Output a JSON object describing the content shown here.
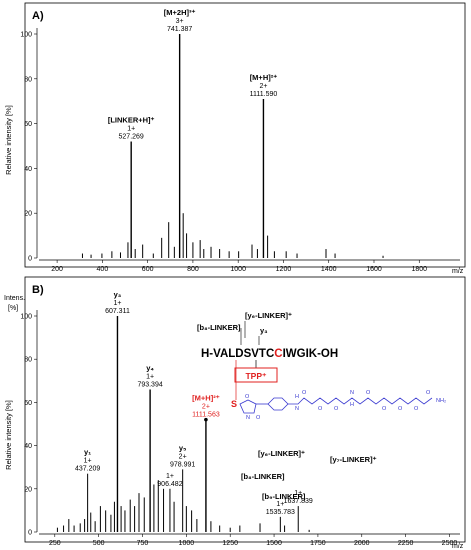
{
  "chart_data": [
    {
      "type": "bar",
      "panel_label": "A)",
      "ylabel": "Relative intensity [%]",
      "xunit": "m/z",
      "xlim": [
        120,
        1980
      ],
      "ylim": [
        0,
        100
      ],
      "x_ticks": [
        200,
        400,
        600,
        800,
        1000,
        1200,
        1400,
        1600,
        1800
      ],
      "y_ticks": [
        0,
        20,
        40,
        60,
        80,
        100
      ],
      "peaks": [
        {
          "mz": 312,
          "rel": 2
        },
        {
          "mz": 350,
          "rel": 1.5
        },
        {
          "mz": 398,
          "rel": 2
        },
        {
          "mz": 442,
          "rel": 3
        },
        {
          "mz": 480,
          "rel": 2.5
        },
        {
          "mz": 513,
          "rel": 7
        },
        {
          "mz": 527.269,
          "rel": 52
        },
        {
          "mz": 545,
          "rel": 4
        },
        {
          "mz": 578,
          "rel": 6
        },
        {
          "mz": 625,
          "rel": 2
        },
        {
          "mz": 662,
          "rel": 9
        },
        {
          "mz": 693,
          "rel": 16
        },
        {
          "mz": 718,
          "rel": 5
        },
        {
          "mz": 741.387,
          "rel": 100
        },
        {
          "mz": 757,
          "rel": 20
        },
        {
          "mz": 772,
          "rel": 11
        },
        {
          "mz": 800,
          "rel": 7
        },
        {
          "mz": 832,
          "rel": 8
        },
        {
          "mz": 848,
          "rel": 4
        },
        {
          "mz": 880,
          "rel": 5
        },
        {
          "mz": 918,
          "rel": 4
        },
        {
          "mz": 960,
          "rel": 3
        },
        {
          "mz": 1002,
          "rel": 3
        },
        {
          "mz": 1061,
          "rel": 6
        },
        {
          "mz": 1085,
          "rel": 4
        },
        {
          "mz": 1111.59,
          "rel": 71
        },
        {
          "mz": 1130,
          "rel": 10
        },
        {
          "mz": 1160,
          "rel": 3
        },
        {
          "mz": 1212,
          "rel": 3
        },
        {
          "mz": 1260,
          "rel": 2
        },
        {
          "mz": 1388,
          "rel": 4
        },
        {
          "mz": 1428,
          "rel": 2
        },
        {
          "mz": 1640,
          "rel": 1
        }
      ],
      "annotations": [
        {
          "mz": 527.269,
          "rel": 52,
          "lines": [
            "[LINKER+H]⁺",
            "1+",
            "527.269"
          ]
        },
        {
          "mz": 741.387,
          "rel": 100,
          "lines": [
            "[M+2H]³⁺",
            "3+",
            "741.387"
          ]
        },
        {
          "mz": 1111.59,
          "rel": 71,
          "lines": [
            "[M+H]²⁺",
            "2+",
            "1111.590"
          ]
        }
      ]
    },
    {
      "type": "bar",
      "panel_label": "B)",
      "ylabel": "Relative intensity [%]",
      "intens_label": [
        "Intens.",
        "[%]"
      ],
      "xunit": "m/z",
      "xlim": [
        160,
        2560
      ],
      "ylim": [
        0,
        100
      ],
      "x_ticks": [
        250,
        500,
        750,
        1000,
        1250,
        1500,
        1750,
        2000,
        2250,
        2500
      ],
      "y_ticks": [
        0,
        20,
        40,
        60,
        80,
        100
      ],
      "peaks": [
        {
          "mz": 265,
          "rel": 2
        },
        {
          "mz": 300,
          "rel": 3
        },
        {
          "mz": 330,
          "rel": 6
        },
        {
          "mz": 360,
          "rel": 3
        },
        {
          "mz": 395,
          "rel": 4
        },
        {
          "mz": 420,
          "rel": 6
        },
        {
          "mz": 437.209,
          "rel": 27
        },
        {
          "mz": 455,
          "rel": 9
        },
        {
          "mz": 480,
          "rel": 5
        },
        {
          "mz": 510,
          "rel": 12
        },
        {
          "mz": 540,
          "rel": 10
        },
        {
          "mz": 570,
          "rel": 8
        },
        {
          "mz": 590,
          "rel": 14
        },
        {
          "mz": 607.311,
          "rel": 100
        },
        {
          "mz": 628,
          "rel": 12
        },
        {
          "mz": 650,
          "rel": 10
        },
        {
          "mz": 680,
          "rel": 15
        },
        {
          "mz": 705,
          "rel": 12
        },
        {
          "mz": 730,
          "rel": 18
        },
        {
          "mz": 760,
          "rel": 16
        },
        {
          "mz": 793.394,
          "rel": 66
        },
        {
          "mz": 815,
          "rel": 22
        },
        {
          "mz": 840,
          "rel": 24
        },
        {
          "mz": 870,
          "rel": 20
        },
        {
          "mz": 906.482,
          "rel": 20
        },
        {
          "mz": 930,
          "rel": 14
        },
        {
          "mz": 978.991,
          "rel": 29
        },
        {
          "mz": 1000,
          "rel": 12
        },
        {
          "mz": 1030,
          "rel": 10
        },
        {
          "mz": 1060,
          "rel": 6
        },
        {
          "mz": 1111.563,
          "rel": 52
        },
        {
          "mz": 1140,
          "rel": 5
        },
        {
          "mz": 1190,
          "rel": 3
        },
        {
          "mz": 1250,
          "rel": 2
        },
        {
          "mz": 1305,
          "rel": 3
        },
        {
          "mz": 1420,
          "rel": 4
        },
        {
          "mz": 1535.783,
          "rel": 7
        },
        {
          "mz": 1560,
          "rel": 3
        },
        {
          "mz": 1637.839,
          "rel": 12
        },
        {
          "mz": 1700,
          "rel": 1
        }
      ],
      "annotations": [
        {
          "mz": 437.209,
          "rel": 27,
          "lines": [
            "y₁",
            "1+",
            "437.209"
          ]
        },
        {
          "mz": 607.311,
          "rel": 100,
          "lines": [
            "y₃",
            "1+",
            "607.311"
          ]
        },
        {
          "mz": 793.394,
          "rel": 66,
          "lines": [
            "y₄",
            "1+",
            "793.394"
          ]
        },
        {
          "mz": 906.482,
          "rel": 20,
          "lines": [
            "1+",
            "906.482"
          ]
        },
        {
          "mz": 978.991,
          "rel": 29,
          "lines": [
            "y₅",
            "2+",
            "978.991"
          ]
        },
        {
          "mz": 1111.563,
          "rel": 52,
          "lines": [
            "[M+H]²⁺",
            "2+",
            "1111.563"
          ],
          "color": "#e0201f"
        },
        {
          "mz": 1535.783,
          "rel": 7,
          "lines": [
            "1+",
            "1535.783"
          ]
        },
        {
          "mz": 1637.839,
          "rel": 12,
          "lines": [
            "1+",
            "1637.839"
          ]
        }
      ],
      "fragment_labels": [
        "[b₈-LINKER]",
        "[y₆-LINKER]⁺",
        "y₃",
        "[y₆-LINKER]⁺",
        "[b₈-LINKER]",
        "[b₉-LINKER]",
        "[y₇-LINKER]⁺"
      ],
      "peptide": {
        "sequence_prefix": "H-VALDSVTC",
        "cys": "C",
        "sequence_suffix": "IWGIK-OH",
        "tag": "TPP⁺",
        "sulfur": "S",
        "atoms": [
          "O",
          "N",
          "O",
          "N",
          "H",
          "O",
          "O",
          "O",
          "N",
          "H",
          "O",
          "O",
          "O",
          "O",
          "O",
          "NH₂"
        ]
      }
    }
  ]
}
